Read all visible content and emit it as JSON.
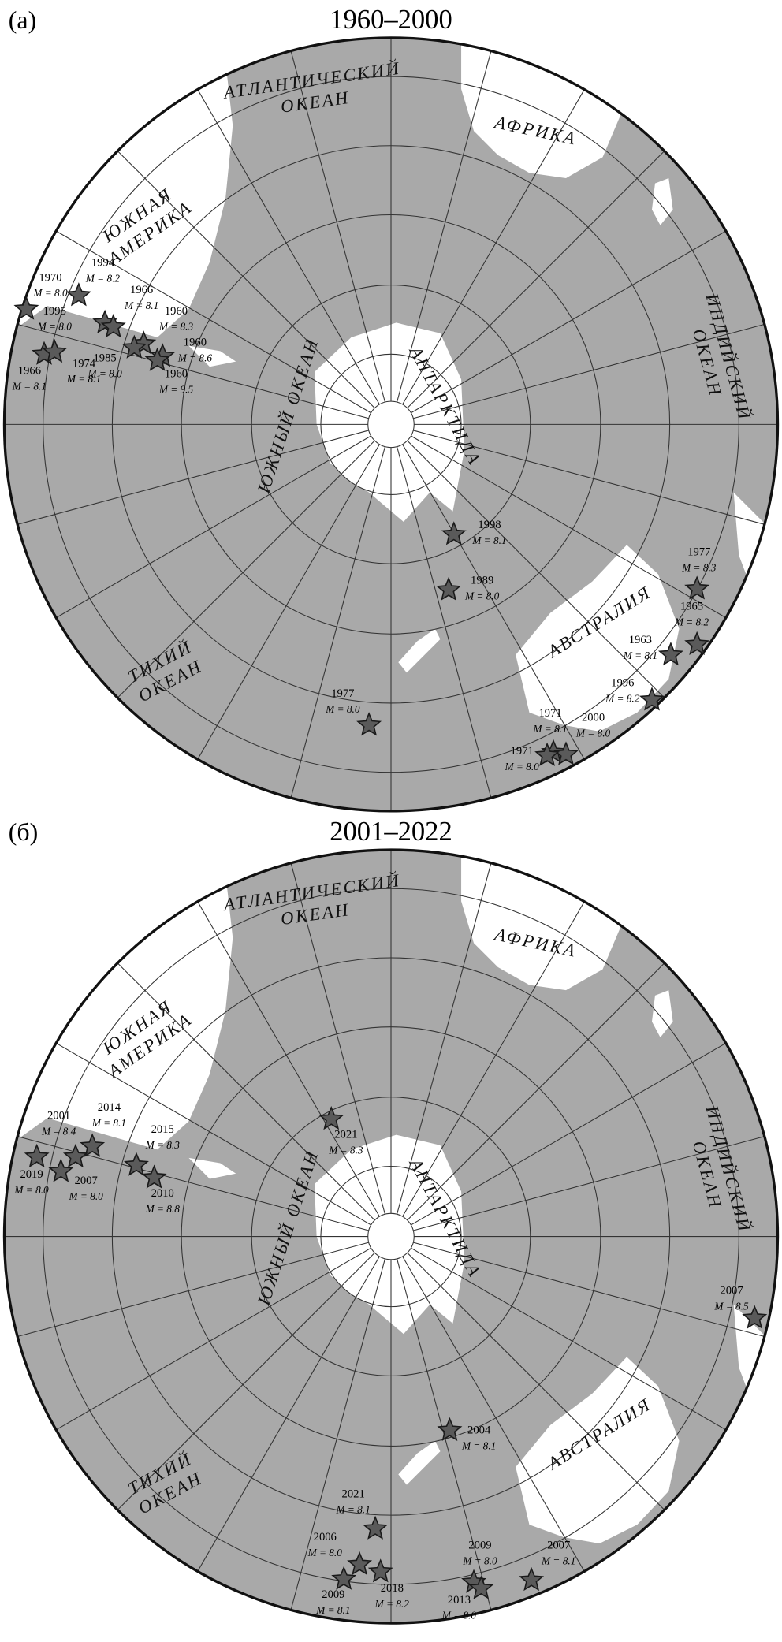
{
  "panels": [
    {
      "label": "(а)",
      "title": "1960–2000",
      "regions": [
        {
          "lines": [
            "АТЛАНТИЧЕСКИЙ",
            "ОКЕАН"
          ]
        },
        {
          "lines": [
            "АФРИКА"
          ]
        },
        {
          "lines": [
            "ЮЖНАЯ",
            "АМЕРИКА"
          ]
        },
        {
          "lines": [
            "ИНДИЙСКИЙ",
            "ОКЕАН"
          ]
        },
        {
          "lines": [
            "ЮЖНЫЙ ОКЕАН"
          ]
        },
        {
          "lines": [
            "АНТАРКТИДА"
          ]
        },
        {
          "lines": [
            "ТИХИЙ",
            "ОКЕАН"
          ]
        },
        {
          "lines": [
            "АВСТРАЛИЯ"
          ]
        }
      ],
      "events": [
        {
          "year": "1970",
          "magnitude": "M = 8.0"
        },
        {
          "year": "1994",
          "magnitude": "M = 8.2"
        },
        {
          "year": "1995",
          "magnitude": "M = 8.0"
        },
        {
          "year": "1966",
          "magnitude": "M = 8.1"
        },
        {
          "year": "1960",
          "magnitude": "M = 8.3"
        },
        {
          "year": "1960",
          "magnitude": "M = 8.6"
        },
        {
          "year": "1985",
          "magnitude": "M = 8.0"
        },
        {
          "year": "1960",
          "magnitude": "M = 9.5"
        },
        {
          "year": "1966",
          "magnitude": "M = 8.1"
        },
        {
          "year": "1974",
          "magnitude": "M = 8.1"
        },
        {
          "year": "1998",
          "magnitude": "M = 8.1"
        },
        {
          "year": "1989",
          "magnitude": "M = 8.0"
        },
        {
          "year": "1977",
          "magnitude": "M = 8.0"
        },
        {
          "year": "1977",
          "magnitude": "M = 8.3"
        },
        {
          "year": "1965",
          "magnitude": "M = 8.2"
        },
        {
          "year": "1963",
          "magnitude": "M = 8.1"
        },
        {
          "year": "1996",
          "magnitude": "M = 8.2"
        },
        {
          "year": "1971",
          "magnitude": "M = 8.1"
        },
        {
          "year": "2000",
          "magnitude": "M = 8.0"
        },
        {
          "year": "1971",
          "magnitude": "M = 8.0"
        }
      ]
    },
    {
      "label": "(б)",
      "title": "2001–2022",
      "regions": [
        {
          "lines": [
            "АТЛАНТИЧЕСКИЙ",
            "ОКЕАН"
          ]
        },
        {
          "lines": [
            "АФРИКА"
          ]
        },
        {
          "lines": [
            "ЮЖНАЯ",
            "АМЕРИКА"
          ]
        },
        {
          "lines": [
            "ИНДИЙСКИЙ",
            "ОКЕАН"
          ]
        },
        {
          "lines": [
            "ЮЖНЫЙ ОКЕАН"
          ]
        },
        {
          "lines": [
            "АНТАРКТИДА"
          ]
        },
        {
          "lines": [
            "ТИХИЙ",
            "ОКЕАН"
          ]
        },
        {
          "lines": [
            "АВСТРАЛИЯ"
          ]
        }
      ],
      "events": [
        {
          "year": "2001",
          "magnitude": "M = 8.4"
        },
        {
          "year": "2014",
          "magnitude": "M = 8.1"
        },
        {
          "year": "2019",
          "magnitude": "M = 8.0"
        },
        {
          "year": "2007",
          "magnitude": "M = 8.0"
        },
        {
          "year": "2015",
          "magnitude": "M = 8.3"
        },
        {
          "year": "2010",
          "magnitude": "M = 8.8"
        },
        {
          "year": "2021",
          "magnitude": "M = 8.3"
        },
        {
          "year": "2007",
          "magnitude": "M = 8.5"
        },
        {
          "year": "2004",
          "magnitude": "M = 8.1"
        },
        {
          "year": "2021",
          "magnitude": "M = 8.1"
        },
        {
          "year": "2006",
          "magnitude": "M = 8.0"
        },
        {
          "year": "2009",
          "magnitude": "M = 8.1"
        },
        {
          "year": "2018",
          "magnitude": "M = 8.2"
        },
        {
          "year": "2009",
          "magnitude": "M = 8.0"
        },
        {
          "year": "2013",
          "magnitude": "M = 8.0"
        },
        {
          "year": "2007",
          "magnitude": "M = 8.1"
        }
      ]
    }
  ]
}
